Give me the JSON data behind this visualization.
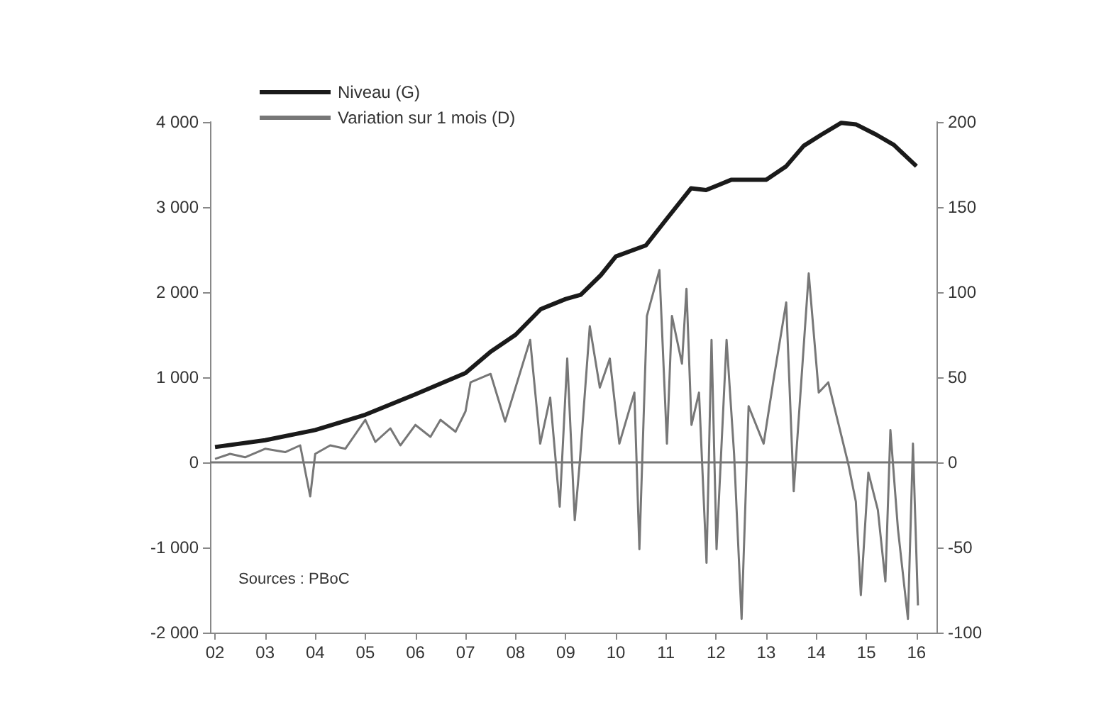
{
  "chart_data": {
    "type": "line",
    "xlim": [
      2001.9,
      2016.4
    ],
    "xticks": [
      {
        "value": 2002,
        "label": "02"
      },
      {
        "value": 2003,
        "label": "03"
      },
      {
        "value": 2004,
        "label": "04"
      },
      {
        "value": 2005,
        "label": "05"
      },
      {
        "value": 2006,
        "label": "06"
      },
      {
        "value": 2007,
        "label": "07"
      },
      {
        "value": 2008,
        "label": "08"
      },
      {
        "value": 2009,
        "label": "09"
      },
      {
        "value": 2010,
        "label": "10"
      },
      {
        "value": 2011,
        "label": "11"
      },
      {
        "value": 2012,
        "label": "12"
      },
      {
        "value": 2013,
        "label": "13"
      },
      {
        "value": 2014,
        "label": "14"
      },
      {
        "value": 2015,
        "label": "15"
      },
      {
        "value": 2016,
        "label": "16"
      }
    ],
    "ylim": [
      -2000,
      4000
    ],
    "yticks": [
      {
        "value": -2000,
        "label": "-2 000"
      },
      {
        "value": -1000,
        "label": "-1 000"
      },
      0,
      {
        "value": 1000,
        "label": "1 000"
      },
      {
        "value": 2000,
        "label": "2 000"
      },
      {
        "value": 3000,
        "label": "3 000"
      },
      {
        "value": 4000,
        "label": "4 000"
      }
    ],
    "y2lim": [
      -100,
      200
    ],
    "y2ticks": [
      -100,
      -50,
      0,
      50,
      100,
      150,
      200
    ],
    "series": [
      {
        "name": "Niveau (G)",
        "color": "#1a1a1a",
        "x": [
          2002.0,
          2003.0,
          2004.0,
          2005.0,
          2006.0,
          2007.0,
          2007.5,
          2008.0,
          2008.5,
          2009.0,
          2009.3,
          2009.7,
          2010.0,
          2010.6,
          2011.0,
          2011.5,
          2011.8,
          2012.3,
          2013.0,
          2013.4,
          2013.75,
          2014.1,
          2014.5,
          2014.8,
          2015.2,
          2015.55,
          2016.0
        ],
        "values": [
          180,
          260,
          380,
          560,
          800,
          1050,
          1300,
          1500,
          1800,
          1920,
          1970,
          2200,
          2420,
          2550,
          2850,
          3220,
          3200,
          3320,
          3320,
          3480,
          3720,
          3850,
          3990,
          3970,
          3850,
          3730,
          3480
        ]
      },
      {
        "name": "Variation sur 1 mois (D)",
        "color": "#777777",
        "axis": "y2",
        "x": [
          2002.0,
          2002.3,
          2002.6,
          2003.0,
          2003.4,
          2003.7,
          2003.9,
          2004.0,
          2004.3,
          2004.6,
          2005.0,
          2005.2,
          2005.5,
          2005.7,
          2006.0,
          2006.3,
          2006.5,
          2006.8,
          2007.0,
          2007.1,
          2007.5,
          2007.79,
          2008.29,
          2008.49,
          2008.69,
          2008.88,
          2009.03,
          2009.18,
          2009.28,
          2009.48,
          2009.68,
          2009.88,
          2010.07,
          2010.37,
          2010.47,
          2010.62,
          2010.87,
          2011.02,
          2011.12,
          2011.32,
          2011.41,
          2011.51,
          2011.66,
          2011.81,
          2011.91,
          2012.01,
          2012.21,
          2012.36,
          2012.51,
          2012.65,
          2012.95,
          2013.15,
          2013.4,
          2013.55,
          2013.85,
          2014.05,
          2014.24,
          2014.64,
          2014.79,
          2014.89,
          2015.04,
          2015.23,
          2015.38,
          2015.48,
          2015.63,
          2015.83,
          2015.93,
          2016.03
        ],
        "values": [
          2,
          5,
          3,
          8,
          6,
          10,
          -20,
          5,
          10,
          8,
          25,
          12,
          20,
          10,
          22,
          15,
          25,
          18,
          30,
          47,
          52,
          24,
          72,
          11,
          38,
          -26,
          61,
          -34,
          0,
          80,
          44,
          61,
          11,
          41,
          -51,
          86,
          113,
          11,
          86,
          58,
          102,
          22,
          41,
          -59,
          72,
          -51,
          72,
          5,
          -92,
          33,
          11,
          49,
          94,
          -17,
          111,
          41,
          47,
          -1,
          -23,
          -78,
          -6,
          -28,
          -70,
          19,
          -39,
          -92,
          11,
          -84
        ]
      }
    ],
    "ref_lines": [
      {
        "axis": "y",
        "value": 0,
        "color": "#777777"
      }
    ],
    "legend": "top left",
    "grid": false,
    "annotations": [
      "Sources : PBoC"
    ]
  }
}
